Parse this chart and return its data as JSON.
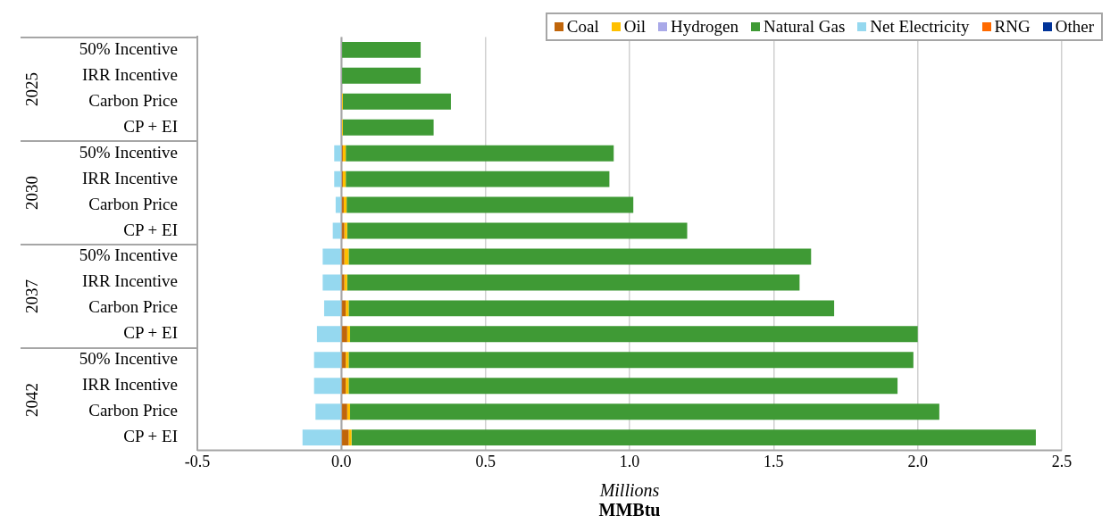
{
  "chart_data": {
    "type": "bar",
    "orientation": "horizontal",
    "stacked": true,
    "categories": [
      "50% Incentive",
      "IRR Incentive",
      "Carbon Price",
      "CP + EI",
      "50% Incentive",
      "IRR Incentive",
      "Carbon Price",
      "CP + EI",
      "50% Incentive",
      "IRR Incentive",
      "Carbon Price",
      "CP + EI",
      "50% Incentive",
      "IRR Incentive",
      "Carbon Price",
      "CP + EI"
    ],
    "series": [
      {
        "name": "Coal",
        "color": "#c0650a",
        "values": [
          0,
          0,
          0,
          0,
          0.005,
          0.005,
          0.008,
          0.01,
          0.01,
          0.01,
          0.015,
          0.02,
          0.015,
          0.015,
          0.02,
          0.025
        ]
      },
      {
        "name": "Oil",
        "color": "#ffc000",
        "values": [
          0,
          0,
          0.005,
          0.005,
          0.01,
          0.01,
          0.01,
          0.01,
          0.015,
          0.01,
          0.01,
          0.01,
          0.01,
          0.01,
          0.01,
          0.01
        ]
      },
      {
        "name": "Hydrogen",
        "color": "#a9a9e8",
        "values": [
          0,
          0,
          0,
          0,
          0,
          0,
          0,
          0,
          0,
          0,
          0,
          0,
          0,
          0,
          0,
          0
        ]
      },
      {
        "name": "Natural Gas",
        "color": "#3f9a35",
        "values": [
          0.275,
          0.275,
          0.375,
          0.315,
          0.93,
          0.915,
          0.995,
          1.18,
          1.605,
          1.57,
          1.685,
          1.97,
          1.96,
          1.905,
          2.045,
          2.375
        ]
      },
      {
        "name": "Net Electricity",
        "color": "#95d8ef",
        "values": [
          0,
          0,
          0,
          0,
          -0.025,
          -0.025,
          -0.02,
          -0.03,
          -0.065,
          -0.065,
          -0.06,
          -0.085,
          -0.095,
          -0.095,
          -0.09,
          -0.135
        ]
      },
      {
        "name": "RNG",
        "color": "#ff6a00",
        "values": [
          0,
          0,
          0,
          0,
          0,
          0,
          0,
          0,
          0,
          0,
          0,
          0,
          0,
          0,
          0,
          0
        ]
      },
      {
        "name": "Other",
        "color": "#003399",
        "values": [
          0,
          0,
          0,
          0,
          0,
          0,
          0,
          0,
          0,
          0,
          0,
          0,
          0,
          0,
          0,
          0
        ]
      }
    ],
    "xlim": [
      -0.5,
      2.5
    ],
    "xticks": [
      -0.5,
      {
        "value": 0,
        "label": "0.0"
      },
      0.5,
      {
        "value": 1,
        "label": "1.0"
      },
      1.5,
      {
        "value": 2,
        "label": "2.0"
      },
      2.5
    ],
    "xlabel": "Millions\nMMBtu",
    "annotations": [
      "2025",
      "2030",
      "2037",
      "2042"
    ],
    "grid": "x",
    "legend": "top right"
  }
}
